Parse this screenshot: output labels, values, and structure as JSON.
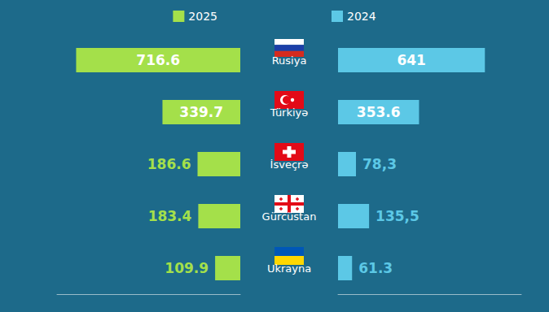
{
  "chart_data": {
    "type": "bar",
    "orientation": "horizontal",
    "categories": [
      "Rusiya",
      "Türkiyə",
      "İsveçrə",
      "Gürcüstan",
      "Ukrayna"
    ],
    "series": [
      {
        "name": "2025",
        "color": "#a4e04a",
        "values": [
          716.6,
          339.7,
          186.6,
          183.4,
          109.9
        ]
      },
      {
        "name": "2024",
        "color": "#5cc8e6",
        "values": [
          641,
          353.6,
          78.3,
          135.5,
          61.3
        ],
        "value_labels": [
          "641",
          "353.6",
          "78,3",
          "135,5",
          "61.3"
        ]
      }
    ],
    "xlim": [
      0,
      800
    ],
    "xticks": [
      0,
      200,
      400,
      600,
      800
    ],
    "data_labels": true,
    "tick_labels": "y",
    "legend": "top",
    "grid": false
  }
}
